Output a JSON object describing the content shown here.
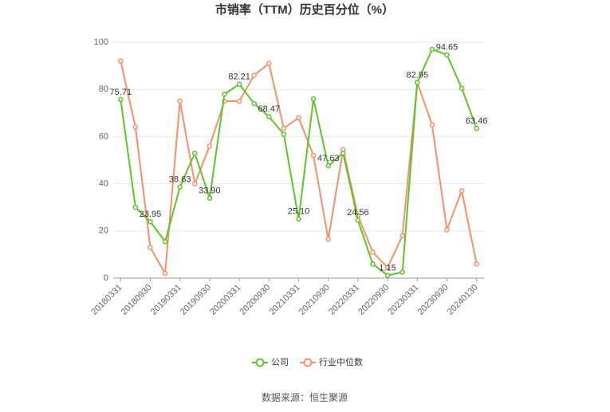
{
  "chart_data": {
    "type": "line",
    "title": "市销率（TTM）历史百分位（%）",
    "source": "数据来源：恒生聚源",
    "categories": [
      "20180331",
      null,
      "20180930",
      null,
      "20190331",
      null,
      "20190930",
      null,
      "20200331",
      null,
      "20200930",
      null,
      "20210331",
      null,
      "20210930",
      null,
      "20220331",
      null,
      "20220930",
      null,
      "20230331",
      null,
      "20230930",
      null,
      "20240130"
    ],
    "series": [
      {
        "name": "公司",
        "color": "#5ec42b",
        "values": [
          75.71,
          30,
          23.95,
          15.5,
          38.63,
          53,
          33.9,
          78,
          82.21,
          74,
          68.47,
          61,
          25.1,
          76,
          47.63,
          53,
          24.56,
          6,
          1.15,
          2.5,
          82.95,
          97,
          94.65,
          80.5,
          63.46
        ],
        "value_labels": [
          "75.71",
          null,
          "23.95",
          null,
          "38.63",
          null,
          "33.90",
          null,
          "82.21",
          null,
          "68.47",
          null,
          "25.10",
          null,
          "47.63",
          null,
          "24.56",
          null,
          "1.15",
          null,
          "82.95",
          null,
          "94.65",
          null,
          "63.46"
        ]
      },
      {
        "name": "行业中位数",
        "color": "#f39169",
        "values": [
          92,
          64,
          13,
          2,
          75,
          40,
          56,
          75,
          75,
          86,
          91,
          63.5,
          68,
          52,
          16.5,
          54.5,
          26.5,
          11,
          4.5,
          18,
          83,
          65,
          20.5,
          37,
          6
        ]
      }
    ],
    "ylim": [
      0,
      100
    ],
    "yticks": [
      0,
      20,
      40,
      60,
      80,
      100
    ],
    "grid": true
  }
}
